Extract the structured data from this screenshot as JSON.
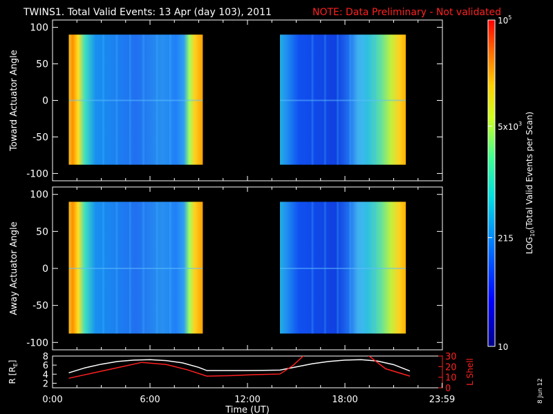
{
  "title": {
    "main": "TWINS1. Total Valid Events: 13 Apr (day 103), 2011",
    "note": "NOTE: Data Preliminary - Not validated"
  },
  "colors": {
    "background": "#000000",
    "axis": "#ffffff",
    "note": "#ff2020",
    "ephem_r": "#ffffff",
    "ephem_l": "#ff2020"
  },
  "side_stamp": "8 Jun 12",
  "chart_data": [
    {
      "type": "heatmap",
      "ylabel": "Toward Actuator Angle",
      "ylim": [
        -110,
        110
      ],
      "yticks": [
        100,
        50,
        0,
        -50,
        -100
      ],
      "xlim_hours": [
        0,
        24
      ],
      "blocks": [
        {
          "start": "1:00",
          "end": "9:15",
          "angle_range": [
            -88,
            90
          ]
        },
        {
          "start": "14:00",
          "end": "21:45",
          "angle_range": [
            -88,
            90
          ]
        }
      ]
    },
    {
      "type": "heatmap",
      "ylabel": "Away Actuator Angle",
      "ylim": [
        -110,
        110
      ],
      "yticks": [
        100,
        50,
        0,
        -50,
        -100
      ],
      "xlim_hours": [
        0,
        24
      ],
      "blocks": [
        {
          "start": "1:00",
          "end": "9:15",
          "angle_range": [
            -88,
            90
          ]
        },
        {
          "start": "14:00",
          "end": "21:45",
          "angle_range": [
            -88,
            90
          ]
        }
      ]
    },
    {
      "type": "line",
      "ylabel_left": "R [R",
      "ylabel_left_sub": "E",
      "ylabel_left_end": "]",
      "ylabel_right": "L Shell",
      "yticks_left": [
        8,
        6,
        4,
        2
      ],
      "yticks_right": [
        30,
        20,
        10,
        0
      ],
      "ylim_left": [
        1,
        8
      ],
      "ylim_right": [
        0,
        30
      ],
      "xlabel": "Time (UT)",
      "xticks": [
        "0:00",
        "6:00",
        "12:00",
        "18:00",
        "23:59"
      ],
      "xtick_hours": [
        0,
        6,
        12,
        18,
        23.98
      ],
      "series": [
        {
          "name": "R",
          "x": [
            1,
            2,
            3,
            4,
            5,
            6,
            7,
            8,
            9,
            9.5,
            12,
            14,
            15,
            16,
            17,
            18,
            19,
            20,
            21,
            22
          ],
          "y": [
            4.3,
            5.4,
            6.2,
            6.8,
            7.1,
            7.2,
            7.0,
            6.5,
            5.5,
            4.8,
            4.8,
            4.9,
            5.6,
            6.3,
            6.8,
            7.1,
            7.2,
            6.9,
            6.1,
            4.7
          ]
        },
        {
          "name": "L",
          "x": [
            1,
            2.5,
            4,
            5.5,
            7,
            8.3,
            9.5,
            11,
            12.5,
            14,
            14.8,
            15.5,
            19.4,
            20.5,
            22
          ],
          "y": [
            9,
            14,
            19,
            24,
            22,
            17,
            11,
            11.5,
            12.5,
            13,
            21,
            31,
            31,
            18,
            11
          ]
        }
      ]
    },
    {
      "type": "heatmap",
      "role": "colorbar",
      "label_prefix": "LOG",
      "label_sub": "10",
      "label_suffix": "(Total Valid  Events per Scan)",
      "ticks": [
        {
          "value": 100000,
          "base": "10",
          "exp": "5"
        },
        {
          "value": 5000,
          "base": "5x10",
          "exp": "3"
        },
        {
          "value": 215,
          "text": "215"
        },
        {
          "value": 10,
          "text": "10"
        }
      ],
      "range": [
        10,
        100000
      ],
      "log": true
    }
  ]
}
